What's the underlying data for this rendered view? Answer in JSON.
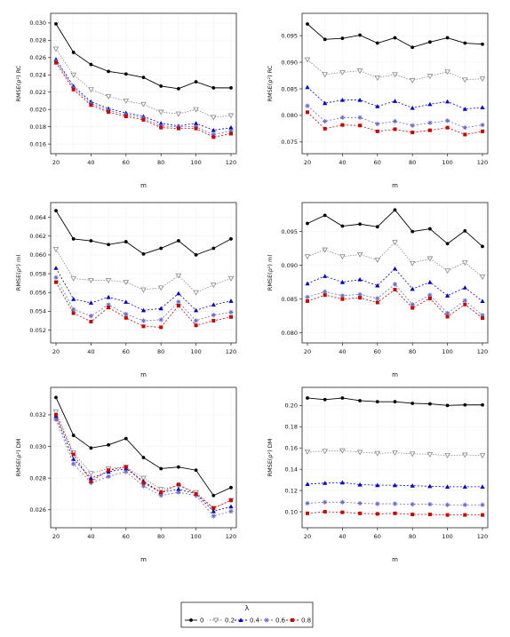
{
  "figure": {
    "xlabel": "m",
    "legend": {
      "title": "λ",
      "placement": "bottom-center",
      "entries": [
        {
          "label": "0",
          "color": "#000000",
          "marker": "circle"
        },
        {
          "label": "0.2",
          "color": "#888888",
          "marker": "triangle-down-open"
        },
        {
          "label": "0.4",
          "color": "#0000cc",
          "marker": "triangle-up"
        },
        {
          "label": "0.6",
          "color": "#6b6bc9",
          "marker": "star"
        },
        {
          "label": "0.8",
          "color": "#cc0000",
          "marker": "square"
        }
      ]
    }
  },
  "chart_data": [
    {
      "type": "line",
      "ylabel": "RMSE(ρ²) RC",
      "x": [
        20,
        30,
        40,
        50,
        60,
        70,
        80,
        90,
        100,
        110,
        120
      ],
      "xlim": [
        20,
        120
      ],
      "xticks": [
        20,
        40,
        60,
        80,
        100,
        120
      ],
      "ylim": [
        0.0155,
        0.0305
      ],
      "yticks": [
        0.016,
        0.018,
        0.02,
        0.022,
        0.024,
        0.026,
        0.028,
        0.03
      ],
      "grid": true,
      "series": [
        {
          "name": "0",
          "values": [
            0.0299,
            0.0266,
            0.0252,
            0.0244,
            0.0241,
            0.0237,
            0.0227,
            0.0224,
            0.0232,
            0.0225,
            0.0225
          ]
        },
        {
          "name": "0.2",
          "values": [
            0.027,
            0.024,
            0.0223,
            0.0215,
            0.021,
            0.0206,
            0.0197,
            0.0195,
            0.02,
            0.0191,
            0.0193
          ]
        },
        {
          "name": "0.4",
          "values": [
            0.0258,
            0.0227,
            0.0209,
            0.0201,
            0.0196,
            0.0192,
            0.0184,
            0.0181,
            0.0184,
            0.0176,
            0.0179
          ]
        },
        {
          "name": "0.6",
          "values": [
            0.0256,
            0.0225,
            0.0207,
            0.0199,
            0.0194,
            0.019,
            0.0181,
            0.018,
            0.018,
            0.0171,
            0.0175
          ]
        },
        {
          "name": "0.8",
          "values": [
            0.0254,
            0.0223,
            0.0205,
            0.0197,
            0.0192,
            0.0188,
            0.0179,
            0.0178,
            0.0178,
            0.0168,
            0.0172
          ]
        }
      ]
    },
    {
      "type": "line",
      "ylabel": "RMSE(ρ²) RC",
      "x": [
        20,
        30,
        40,
        50,
        60,
        70,
        80,
        90,
        100,
        110,
        120
      ],
      "xlim": [
        20,
        120
      ],
      "xticks": [
        20,
        40,
        60,
        80,
        100,
        120
      ],
      "ylim": [
        0.0738,
        0.0982
      ],
      "yticks": [
        0.075,
        0.08,
        0.085,
        0.09,
        0.095
      ],
      "grid": true,
      "series": [
        {
          "name": "0",
          "values": [
            0.0972,
            0.0943,
            0.0945,
            0.0951,
            0.0936,
            0.0946,
            0.0928,
            0.0938,
            0.0946,
            0.0936,
            0.0934
          ]
        },
        {
          "name": "0.2",
          "values": [
            0.0905,
            0.0877,
            0.0881,
            0.0884,
            0.0871,
            0.0877,
            0.0866,
            0.0874,
            0.0882,
            0.0867,
            0.0869
          ]
        },
        {
          "name": "0.4",
          "values": [
            0.0853,
            0.0823,
            0.0829,
            0.0829,
            0.0817,
            0.0827,
            0.0814,
            0.0821,
            0.0826,
            0.0812,
            0.0815
          ]
        },
        {
          "name": "0.6",
          "values": [
            0.0818,
            0.0789,
            0.0796,
            0.0796,
            0.0784,
            0.0789,
            0.0781,
            0.0786,
            0.079,
            0.0777,
            0.0782
          ]
        },
        {
          "name": "0.8",
          "values": [
            0.0806,
            0.0775,
            0.0782,
            0.0781,
            0.077,
            0.0774,
            0.0768,
            0.0772,
            0.0777,
            0.0764,
            0.077
          ]
        }
      ]
    },
    {
      "type": "line",
      "ylabel": "RMSE(ρ²) ml",
      "x": [
        20,
        30,
        40,
        50,
        60,
        70,
        80,
        90,
        100,
        110,
        120
      ],
      "xlim": [
        20,
        120
      ],
      "xticks": [
        20,
        40,
        60,
        80,
        100,
        120
      ],
      "ylim": [
        0.0512,
        0.065
      ],
      "yticks": [
        0.052,
        0.054,
        0.056,
        0.058,
        0.06,
        0.062,
        0.064
      ],
      "grid": true,
      "series": [
        {
          "name": "0",
          "values": [
            0.0647,
            0.0617,
            0.0615,
            0.0611,
            0.0614,
            0.0601,
            0.0607,
            0.0615,
            0.06,
            0.0607,
            0.0617
          ]
        },
        {
          "name": "0.2",
          "values": [
            0.0606,
            0.0575,
            0.0573,
            0.0573,
            0.0571,
            0.0563,
            0.0565,
            0.0578,
            0.056,
            0.0568,
            0.0575
          ]
        },
        {
          "name": "0.4",
          "values": [
            0.0586,
            0.0553,
            0.0549,
            0.0555,
            0.055,
            0.0541,
            0.0543,
            0.0559,
            0.0541,
            0.0547,
            0.0551
          ]
        },
        {
          "name": "0.6",
          "values": [
            0.0576,
            0.0542,
            0.0535,
            0.0547,
            0.0537,
            0.053,
            0.0531,
            0.055,
            0.053,
            0.0536,
            0.0539
          ]
        },
        {
          "name": "0.8",
          "values": [
            0.0571,
            0.0538,
            0.0529,
            0.0544,
            0.0533,
            0.0524,
            0.0523,
            0.0546,
            0.0525,
            0.053,
            0.0534
          ]
        }
      ]
    },
    {
      "type": "line",
      "ylabel": "RMSE(ρ²) ml",
      "x": [
        20,
        30,
        40,
        50,
        60,
        70,
        80,
        90,
        100,
        110,
        120
      ],
      "xlim": [
        20,
        120
      ],
      "xticks": [
        20,
        40,
        60,
        80,
        100,
        120
      ],
      "ylim": [
        0.0793,
        0.0985
      ],
      "yticks": [
        0.08,
        0.085,
        0.09,
        0.095
      ],
      "grid": true,
      "series": [
        {
          "name": "0",
          "values": [
            0.0962,
            0.0974,
            0.0958,
            0.0961,
            0.0957,
            0.0982,
            0.095,
            0.0954,
            0.0932,
            0.0951,
            0.0928
          ]
        },
        {
          "name": "0.2",
          "values": [
            0.0913,
            0.0923,
            0.0913,
            0.0916,
            0.0908,
            0.0934,
            0.0903,
            0.091,
            0.0892,
            0.0904,
            0.0883
          ]
        },
        {
          "name": "0.4",
          "values": [
            0.0873,
            0.0884,
            0.0875,
            0.0879,
            0.087,
            0.0895,
            0.0865,
            0.0875,
            0.0855,
            0.0867,
            0.0847
          ]
        },
        {
          "name": "0.6",
          "values": [
            0.0853,
            0.0861,
            0.0855,
            0.0857,
            0.0851,
            0.0872,
            0.0842,
            0.0856,
            0.0829,
            0.0848,
            0.0826
          ]
        },
        {
          "name": "0.8",
          "values": [
            0.0847,
            0.0856,
            0.085,
            0.0852,
            0.0845,
            0.0864,
            0.0837,
            0.0851,
            0.0824,
            0.0842,
            0.0822
          ]
        }
      ]
    },
    {
      "type": "line",
      "ylabel": "RMSE(ρ²) DM",
      "x": [
        20,
        30,
        40,
        50,
        60,
        70,
        80,
        90,
        100,
        110,
        120
      ],
      "xlim": [
        20,
        120
      ],
      "xticks": [
        20,
        40,
        60,
        80,
        100,
        120
      ],
      "ylim": [
        0.0252,
        0.0334
      ],
      "yticks": [
        0.026,
        0.028,
        0.03,
        0.032
      ],
      "grid": true,
      "series": [
        {
          "name": "0",
          "values": [
            0.0331,
            0.0307,
            0.0299,
            0.0301,
            0.0305,
            0.0293,
            0.0286,
            0.0287,
            0.0285,
            0.0269,
            0.0274
          ]
        },
        {
          "name": "0.2",
          "values": [
            0.0322,
            0.0296,
            0.0283,
            0.0286,
            0.0287,
            0.028,
            0.0273,
            0.0275,
            0.0271,
            0.0261,
            0.0266
          ]
        },
        {
          "name": "0.4",
          "values": [
            0.0319,
            0.0292,
            0.028,
            0.0284,
            0.0286,
            0.0278,
            0.0271,
            0.0273,
            0.027,
            0.0259,
            0.0262
          ]
        },
        {
          "name": "0.6",
          "values": [
            0.0317,
            0.0289,
            0.0277,
            0.0281,
            0.0284,
            0.0275,
            0.0269,
            0.0271,
            0.0269,
            0.0256,
            0.0259
          ]
        },
        {
          "name": "0.8",
          "values": [
            0.032,
            0.0295,
            0.0278,
            0.0285,
            0.0287,
            0.0277,
            0.0271,
            0.0276,
            0.027,
            0.0261,
            0.0266
          ]
        }
      ]
    },
    {
      "type": "line",
      "ylabel": "RMSE(ρ²) DM",
      "x": [
        20,
        30,
        40,
        50,
        60,
        70,
        80,
        90,
        100,
        110,
        120
      ],
      "xlim": [
        20,
        120
      ],
      "xticks": [
        20,
        40,
        60,
        80,
        100,
        120
      ],
      "ylim": [
        0.09,
        0.212
      ],
      "yticks": [
        0.1,
        0.12,
        0.14,
        0.16,
        0.18,
        0.2
      ],
      "grid": true,
      "series": [
        {
          "name": "0",
          "values": [
            0.207,
            0.2055,
            0.207,
            0.2045,
            0.2035,
            0.2035,
            0.202,
            0.2015,
            0.2,
            0.2005,
            0.2005
          ]
        },
        {
          "name": "0.2",
          "values": [
            0.1565,
            0.157,
            0.1575,
            0.156,
            0.155,
            0.1555,
            0.1545,
            0.154,
            0.153,
            0.1535,
            0.153
          ]
        },
        {
          "name": "0.4",
          "values": [
            0.126,
            0.127,
            0.1275,
            0.1255,
            0.125,
            0.125,
            0.1245,
            0.124,
            0.1235,
            0.1235,
            0.1235
          ]
        },
        {
          "name": "0.6",
          "values": [
            0.108,
            0.109,
            0.109,
            0.108,
            0.1075,
            0.1075,
            0.107,
            0.107,
            0.1065,
            0.1065,
            0.1065
          ]
        },
        {
          "name": "0.8",
          "values": [
            0.0985,
            0.1,
            0.0995,
            0.0985,
            0.098,
            0.0985,
            0.0975,
            0.0975,
            0.097,
            0.097,
            0.097
          ]
        }
      ]
    }
  ]
}
